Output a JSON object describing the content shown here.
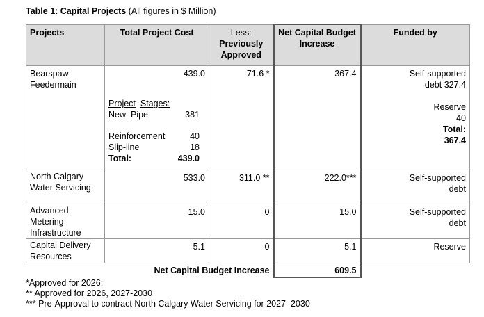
{
  "title": {
    "label": "Table 1: Capital Projects",
    "note": "(All figures in $ Million)"
  },
  "headers": [
    "Projects",
    "Total Project Cost",
    "Less:",
    "Previously Approved",
    "Net Capital Budget Increase",
    "Funded by"
  ],
  "bearspaw": {
    "project": "Bearspaw Feedermain",
    "total": "439.0",
    "less": "71.6 *",
    "net": "367.4",
    "stages_label1": "Project",
    "stages_label2": "Stages:",
    "stages": [
      {
        "name": "New  Pipe",
        "value": "381"
      },
      {
        "name": "Reinforcement",
        "value": "40"
      },
      {
        "name": "Slip-line",
        "value": "18"
      },
      {
        "name": "Total:",
        "value": "439.0"
      }
    ],
    "funded": {
      "line1": "Self-supported",
      "line2": "debt 327.4",
      "line3": "Reserve",
      "line4": "40",
      "line5": "Total:",
      "line6": "367.4"
    }
  },
  "rows": [
    {
      "project": "North Calgary Water Servicing",
      "total": "533.0",
      "less": "311.0 **",
      "net": "222.0***",
      "funded1": "Self-supported",
      "funded2": "debt"
    },
    {
      "project": "Advanced Metering Infrastructure",
      "total": "15.0",
      "less": "0",
      "net": "15.0",
      "funded1": "Self-supported",
      "funded2": "debt"
    },
    {
      "project": "Capital Delivery Resources",
      "total": "5.1",
      "less": "0",
      "net": "5.1",
      "funded1": "Reserve",
      "funded2": ""
    }
  ],
  "total_row": {
    "label": "Net Capital Budget Increase",
    "value": "609.5"
  },
  "footnotes": [
    "*Approved for 2026;",
    "** Approved for 2026, 2027-2030",
    "*** Pre-Approval to contract North Calgary Water Servicing for 2027–2030"
  ]
}
